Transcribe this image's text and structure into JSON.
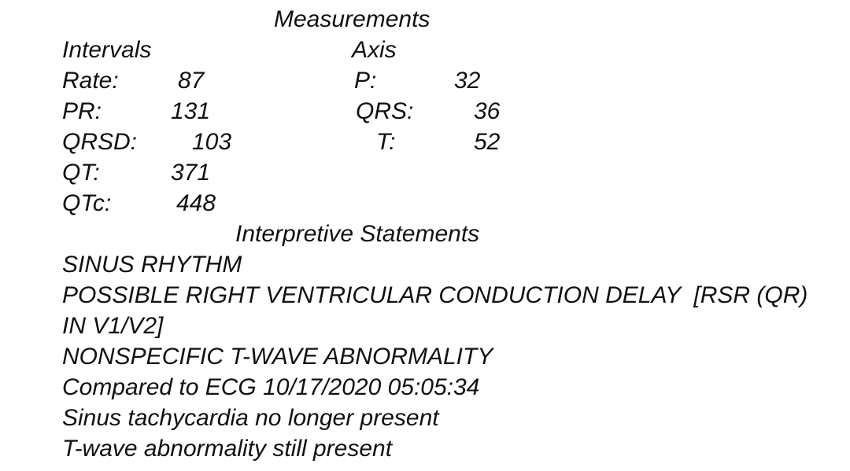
{
  "sections": {
    "measurements_heading": "Measurements",
    "intervals_heading": "Intervals",
    "axis_heading": "Axis",
    "interpretive_heading": "Interpretive Statements"
  },
  "intervals": [
    {
      "label": "Rate:",
      "value": "87"
    },
    {
      "label": "PR:",
      "value": "131"
    },
    {
      "label": "QRSD:",
      "value": "103"
    },
    {
      "label": "QT:",
      "value": "371"
    },
    {
      "label": "QTc:",
      "value": "448"
    }
  ],
  "axis": [
    {
      "label": "P:",
      "value": "32"
    },
    {
      "label": "QRS:",
      "value": "36"
    },
    {
      "label": "T:",
      "value": "52"
    }
  ],
  "statements": [
    "SINUS RHYTHM",
    "POSSIBLE RIGHT VENTRICULAR CONDUCTION DELAY  [RSR (QR)",
    "IN V1/V2]",
    "NONSPECIFIC T-WAVE ABNORMALITY",
    "Compared to ECG 10/17/2020 05:05:34",
    "Sinus tachycardia no longer present",
    "T-wave abnormality still present"
  ]
}
